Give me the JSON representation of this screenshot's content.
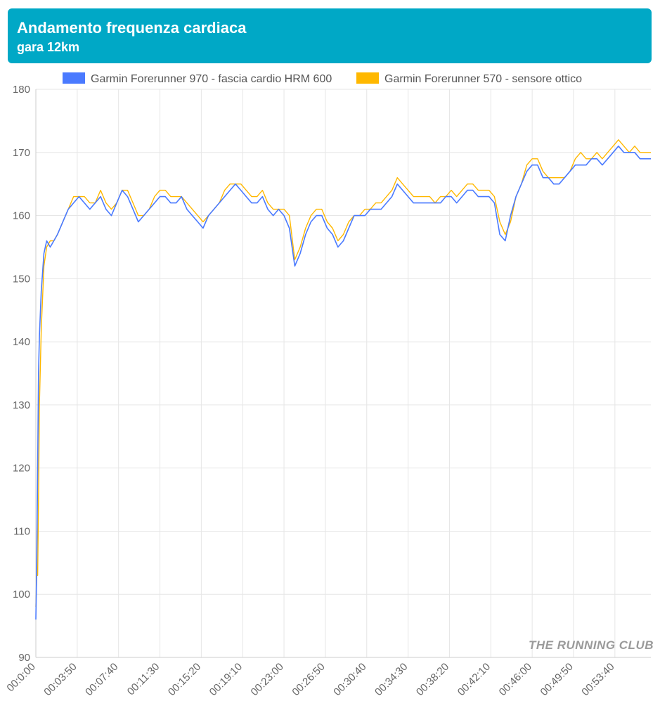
{
  "header": {
    "title": "Andamento frequenza cardiaca",
    "subtitle": "gara 12km",
    "background": "#00a8c6"
  },
  "watermark": "THE RUNNING CLUB",
  "chart_data": {
    "type": "line",
    "title": "Andamento frequenza cardiaca",
    "subtitle": "gara 12km",
    "xlabel": "",
    "ylabel": "",
    "ylim": [
      90,
      180
    ],
    "yticks": [
      90,
      100,
      110,
      120,
      130,
      140,
      150,
      160,
      170,
      180
    ],
    "xlim": [
      "00:0:00",
      "00:57:00"
    ],
    "xticks": [
      "00:0:00",
      "00:03:50",
      "00:07:40",
      "00:11:30",
      "00:15:20",
      "00:19:10",
      "00:23:00",
      "00:26:50",
      "00:30:40",
      "00:34:30",
      "00:38:20",
      "00:42:10",
      "00:46:00",
      "00:49:50",
      "00:53:40"
    ],
    "grid": true,
    "legend_position": "top",
    "series": [
      {
        "name": "Garmin Forerunner 970 - fascia cardio HRM 600",
        "color": "#4a7aff",
        "x": [
          "00:00:00",
          "00:00:05",
          "00:00:10",
          "00:00:15",
          "00:00:20",
          "00:00:30",
          "00:00:45",
          "00:01:00",
          "00:01:20",
          "00:01:40",
          "00:02:00",
          "00:02:30",
          "00:03:00",
          "00:03:30",
          "00:04:00",
          "00:04:30",
          "00:05:00",
          "00:05:30",
          "00:06:00",
          "00:06:30",
          "00:07:00",
          "00:07:30",
          "00:08:00",
          "00:08:30",
          "00:09:00",
          "00:09:30",
          "00:10:00",
          "00:10:30",
          "00:11:00",
          "00:11:30",
          "00:12:00",
          "00:12:30",
          "00:13:00",
          "00:13:30",
          "00:14:00",
          "00:14:30",
          "00:15:00",
          "00:15:30",
          "00:16:00",
          "00:16:30",
          "00:17:00",
          "00:17:30",
          "00:18:00",
          "00:18:30",
          "00:19:00",
          "00:19:30",
          "00:20:00",
          "00:20:30",
          "00:21:00",
          "00:21:30",
          "00:22:00",
          "00:22:30",
          "00:23:00",
          "00:23:30",
          "00:24:00",
          "00:24:30",
          "00:25:00",
          "00:25:30",
          "00:26:00",
          "00:26:30",
          "00:27:00",
          "00:27:30",
          "00:28:00",
          "00:28:30",
          "00:29:00",
          "00:29:30",
          "00:30:00",
          "00:30:30",
          "00:31:00",
          "00:31:30",
          "00:32:00",
          "00:32:30",
          "00:33:00",
          "00:33:30",
          "00:34:00",
          "00:34:30",
          "00:35:00",
          "00:35:30",
          "00:36:00",
          "00:36:30",
          "00:37:00",
          "00:37:30",
          "00:38:00",
          "00:38:30",
          "00:39:00",
          "00:39:30",
          "00:40:00",
          "00:40:30",
          "00:41:00",
          "00:41:30",
          "00:42:00",
          "00:42:30",
          "00:43:00",
          "00:43:30",
          "00:44:00",
          "00:44:30",
          "00:45:00",
          "00:45:30",
          "00:46:00",
          "00:46:30",
          "00:47:00",
          "00:47:30",
          "00:48:00",
          "00:48:30",
          "00:49:00",
          "00:49:30",
          "00:50:00",
          "00:50:30",
          "00:51:00",
          "00:51:30",
          "00:52:00",
          "00:52:30",
          "00:53:00",
          "00:53:30",
          "00:54:00",
          "00:54:30",
          "00:55:00",
          "00:55:30",
          "00:56:00",
          "00:56:30",
          "00:57:00"
        ],
        "values": [
          96,
          105,
          120,
          135,
          141,
          148,
          154,
          156,
          155,
          156,
          157,
          159,
          161,
          162,
          163,
          162,
          161,
          162,
          163,
          161,
          160,
          162,
          164,
          163,
          161,
          159,
          160,
          161,
          162,
          163,
          163,
          162,
          162,
          163,
          161,
          160,
          159,
          158,
          160,
          161,
          162,
          163,
          164,
          165,
          164,
          163,
          162,
          162,
          163,
          161,
          160,
          161,
          160,
          158,
          152,
          154,
          157,
          159,
          160,
          160,
          158,
          157,
          155,
          156,
          158,
          160,
          160,
          160,
          161,
          161,
          161,
          162,
          163,
          165,
          164,
          163,
          162,
          162,
          162,
          162,
          162,
          162,
          163,
          163,
          162,
          163,
          164,
          164,
          163,
          163,
          163,
          162,
          157,
          156,
          160,
          163,
          165,
          167,
          168,
          168,
          166,
          166,
          165,
          165,
          166,
          167,
          168,
          168,
          168,
          169,
          169,
          168,
          169,
          170,
          171,
          170,
          170,
          170,
          169,
          169,
          169
        ]
      },
      {
        "name": "Garmin Forerunner 570 - sensore ottico",
        "color": "#ffb800",
        "x": [
          "00:00:00",
          "00:00:05",
          "00:00:10",
          "00:00:15",
          "00:00:20",
          "00:00:30",
          "00:00:45",
          "00:01:00",
          "00:01:20",
          "00:01:40",
          "00:02:00",
          "00:02:30",
          "00:03:00",
          "00:03:30",
          "00:04:00",
          "00:04:30",
          "00:05:00",
          "00:05:30",
          "00:06:00",
          "00:06:30",
          "00:07:00",
          "00:07:30",
          "00:08:00",
          "00:08:30",
          "00:09:00",
          "00:09:30",
          "00:10:00",
          "00:10:30",
          "00:11:00",
          "00:11:30",
          "00:12:00",
          "00:12:30",
          "00:13:00",
          "00:13:30",
          "00:14:00",
          "00:14:30",
          "00:15:00",
          "00:15:30",
          "00:16:00",
          "00:16:30",
          "00:17:00",
          "00:17:30",
          "00:18:00",
          "00:18:30",
          "00:19:00",
          "00:19:30",
          "00:20:00",
          "00:20:30",
          "00:21:00",
          "00:21:30",
          "00:22:00",
          "00:22:30",
          "00:23:00",
          "00:23:30",
          "00:24:00",
          "00:24:30",
          "00:25:00",
          "00:25:30",
          "00:26:00",
          "00:26:30",
          "00:27:00",
          "00:27:30",
          "00:28:00",
          "00:28:30",
          "00:29:00",
          "00:29:30",
          "00:30:00",
          "00:30:30",
          "00:31:00",
          "00:31:30",
          "00:32:00",
          "00:32:30",
          "00:33:00",
          "00:33:30",
          "00:34:00",
          "00:34:30",
          "00:35:00",
          "00:35:30",
          "00:36:00",
          "00:36:30",
          "00:37:00",
          "00:37:30",
          "00:38:00",
          "00:38:30",
          "00:39:00",
          "00:39:30",
          "00:40:00",
          "00:40:30",
          "00:41:00",
          "00:41:30",
          "00:42:00",
          "00:42:30",
          "00:43:00",
          "00:43:30",
          "00:44:00",
          "00:44:30",
          "00:45:00",
          "00:45:30",
          "00:46:00",
          "00:46:30",
          "00:47:00",
          "00:47:30",
          "00:48:00",
          "00:48:30",
          "00:49:00",
          "00:49:30",
          "00:50:00",
          "00:50:30",
          "00:51:00",
          "00:51:30",
          "00:52:00",
          "00:52:30",
          "00:53:00",
          "00:53:30",
          "00:54:00",
          "00:54:30",
          "00:55:00",
          "00:55:30",
          "00:56:00",
          "00:56:30",
          "00:57:00"
        ],
        "values": [
          98,
          103,
          103,
          115,
          130,
          142,
          152,
          155,
          156,
          156,
          157,
          159,
          161,
          163,
          163,
          163,
          162,
          162,
          164,
          162,
          161,
          162,
          164,
          164,
          162,
          160,
          160,
          161,
          163,
          164,
          164,
          163,
          163,
          163,
          162,
          161,
          160,
          159,
          160,
          161,
          162,
          164,
          165,
          165,
          165,
          164,
          163,
          163,
          164,
          162,
          161,
          161,
          161,
          160,
          153,
          155,
          158,
          160,
          161,
          161,
          159,
          158,
          156,
          157,
          159,
          160,
          160,
          161,
          161,
          162,
          162,
          163,
          164,
          166,
          165,
          164,
          163,
          163,
          163,
          163,
          162,
          163,
          163,
          164,
          163,
          164,
          165,
          165,
          164,
          164,
          164,
          163,
          159,
          157,
          159,
          163,
          165,
          168,
          169,
          169,
          167,
          166,
          166,
          166,
          166,
          167,
          169,
          170,
          169,
          169,
          170,
          169,
          170,
          171,
          172,
          171,
          170,
          171,
          170,
          170,
          170
        ]
      }
    ]
  }
}
